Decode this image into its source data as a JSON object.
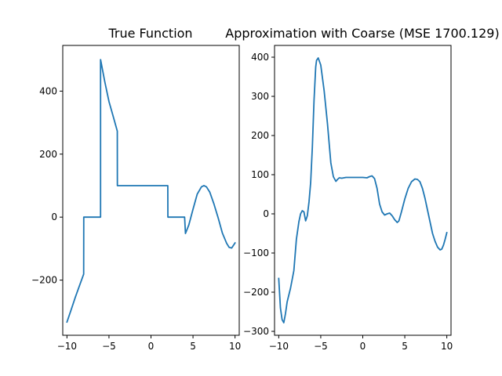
{
  "chart_data": [
    {
      "type": "line",
      "title": "True Function",
      "xlim": [
        -10.5,
        10.5
      ],
      "ylim": [
        -375,
        545
      ],
      "xticks": [
        -10,
        -5,
        0,
        5,
        10
      ],
      "yticks": [
        -200,
        0,
        200,
        400
      ],
      "color": "#1f77b4",
      "series": [
        {
          "x": [
            -10,
            -9.5,
            -9,
            -8.5,
            -8.01,
            -8,
            -7,
            -6,
            -6,
            -5.5,
            -5,
            -4.5,
            -4.01,
            -4,
            -3,
            -2,
            -1,
            0,
            1,
            2,
            2.01,
            3,
            4,
            4.1,
            4.5,
            5,
            5.5,
            6,
            6.3,
            6.6,
            7,
            7.5,
            8,
            8.5,
            9,
            9.3,
            9.6,
            10
          ],
          "y": [
            -333,
            -294,
            -254,
            -217,
            -181,
            0,
            0,
            0,
            500,
            430,
            367,
            320,
            273,
            100,
            100,
            100,
            100,
            100,
            100,
            100,
            0,
            0,
            0,
            -52,
            -25,
            25,
            73,
            96,
            100,
            96,
            79,
            41,
            -3,
            -51,
            -83,
            -96,
            -98,
            -82
          ]
        }
      ]
    },
    {
      "type": "line",
      "title": "Approximation with Coarse (MSE 1700.129)",
      "xlim": [
        -10.5,
        10.5
      ],
      "ylim": [
        -310,
        430
      ],
      "xticks": [
        -10,
        -5,
        0,
        5,
        10
      ],
      "yticks": [
        -300,
        -200,
        -100,
        0,
        100,
        200,
        300,
        400
      ],
      "color": "#1f77b4",
      "series": [
        {
          "x": [
            -10,
            -9.8,
            -9.6,
            -9.4,
            -9.2,
            -9,
            -8.6,
            -8.2,
            -7.9,
            -7.6,
            -7.4,
            -7.2,
            -7,
            -6.8,
            -6.6,
            -6.4,
            -6.2,
            -6,
            -5.8,
            -5.6,
            -5.5,
            -5.3,
            -5,
            -4.6,
            -4.2,
            -3.8,
            -3.5,
            -3.2,
            -3,
            -2.8,
            -2.5,
            -2,
            -1.5,
            -1,
            -0.5,
            0,
            0.5,
            0.8,
            1.1,
            1.4,
            1.7,
            2,
            2.3,
            2.6,
            2.9,
            3.2,
            3.5,
            3.8,
            4.1,
            4.3,
            4.6,
            5,
            5.4,
            5.8,
            6.2,
            6.5,
            6.8,
            7.1,
            7.4,
            7.7,
            8,
            8.3,
            8.6,
            8.9,
            9.2,
            9.4,
            9.6,
            9.8,
            10
          ],
          "y": [
            -165,
            -240,
            -270,
            -278,
            -255,
            -225,
            -190,
            -145,
            -65,
            -20,
            0,
            8,
            5,
            -18,
            -5,
            30,
            80,
            170,
            290,
            375,
            392,
            398,
            380,
            315,
            230,
            130,
            95,
            83,
            88,
            92,
            91,
            93,
            93,
            93,
            93,
            93,
            92,
            95,
            97,
            90,
            65,
            25,
            5,
            -3,
            0,
            2,
            -5,
            -15,
            -22,
            -18,
            5,
            38,
            65,
            82,
            89,
            88,
            82,
            65,
            40,
            10,
            -20,
            -50,
            -70,
            -85,
            -92,
            -90,
            -80,
            -65,
            -48
          ]
        }
      ]
    }
  ]
}
